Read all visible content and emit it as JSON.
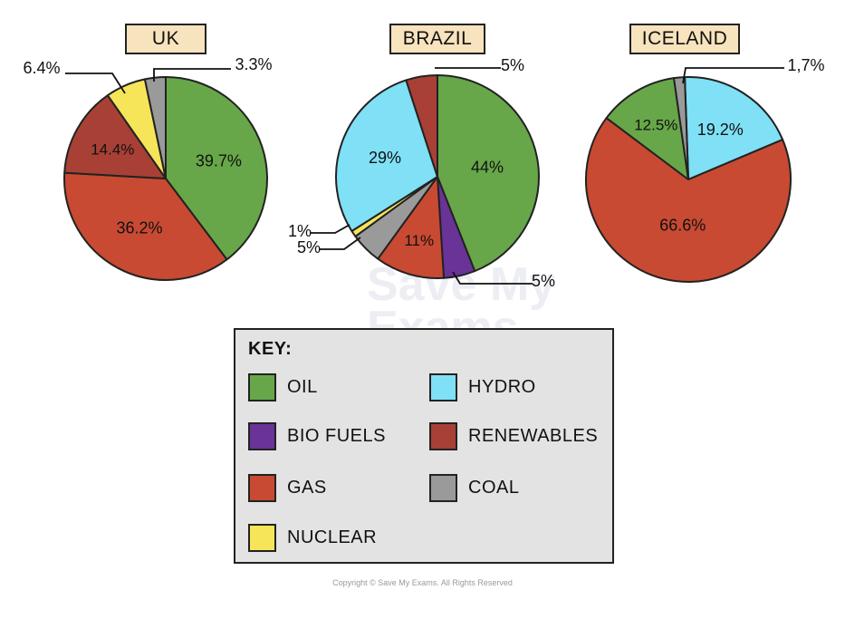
{
  "colors": {
    "oil": "#67a749",
    "bio_fuels": "#6a3397",
    "gas": "#c84a32",
    "nuclear": "#f7e559",
    "hydro": "#7fe0f6",
    "renewables": "#a84036",
    "coal": "#9a9a9a",
    "outline": "#222222",
    "title_bg": "#f7e3bd",
    "key_bg": "#e3e3e3"
  },
  "watermark": [
    "Save My",
    "Exams"
  ],
  "chart_data": [
    {
      "type": "pie",
      "title": "UK",
      "slices": [
        {
          "category": "oil",
          "value": 39.7,
          "label": "39.7%"
        },
        {
          "category": "gas",
          "value": 36.2,
          "label": "36.2%"
        },
        {
          "category": "renewables",
          "value": 14.4,
          "label": "14.4%"
        },
        {
          "category": "nuclear",
          "value": 6.4,
          "label": "6.4%"
        },
        {
          "category": "coal",
          "value": 3.3,
          "label": "3.3%"
        }
      ]
    },
    {
      "type": "pie",
      "title": "BRAZIL",
      "slices": [
        {
          "category": "oil",
          "value": 44,
          "label": "44%"
        },
        {
          "category": "bio_fuels",
          "value": 5,
          "label": "5%"
        },
        {
          "category": "gas",
          "value": 11,
          "label": "11%"
        },
        {
          "category": "coal",
          "value": 5,
          "label": "5%"
        },
        {
          "category": "nuclear",
          "value": 1,
          "label": "1%"
        },
        {
          "category": "hydro",
          "value": 29,
          "label": "29%"
        },
        {
          "category": "renewables",
          "value": 5,
          "label": "5%"
        }
      ]
    },
    {
      "type": "pie",
      "title": "ICELAND",
      "slices": [
        {
          "category": "hydro",
          "value": 19.2,
          "label": "19.2%"
        },
        {
          "category": "gas",
          "value": 66.6,
          "label": "66.6%"
        },
        {
          "category": "oil",
          "value": 12.5,
          "label": "12.5%"
        },
        {
          "category": "coal",
          "value": 1.7,
          "label": "1,7%"
        }
      ]
    }
  ],
  "key": {
    "title": "KEY:",
    "items": [
      {
        "category": "oil",
        "label": "OIL"
      },
      {
        "category": "hydro",
        "label": "HYDRO"
      },
      {
        "category": "bio_fuels",
        "label": "BIO FUELS"
      },
      {
        "category": "renewables",
        "label": "RENEWABLES"
      },
      {
        "category": "gas",
        "label": "GAS"
      },
      {
        "category": "coal",
        "label": "COAL"
      },
      {
        "category": "nuclear",
        "label": "NUCLEAR"
      }
    ]
  },
  "copyright": "Copyright © Save My Exams. All Rights Reserved"
}
